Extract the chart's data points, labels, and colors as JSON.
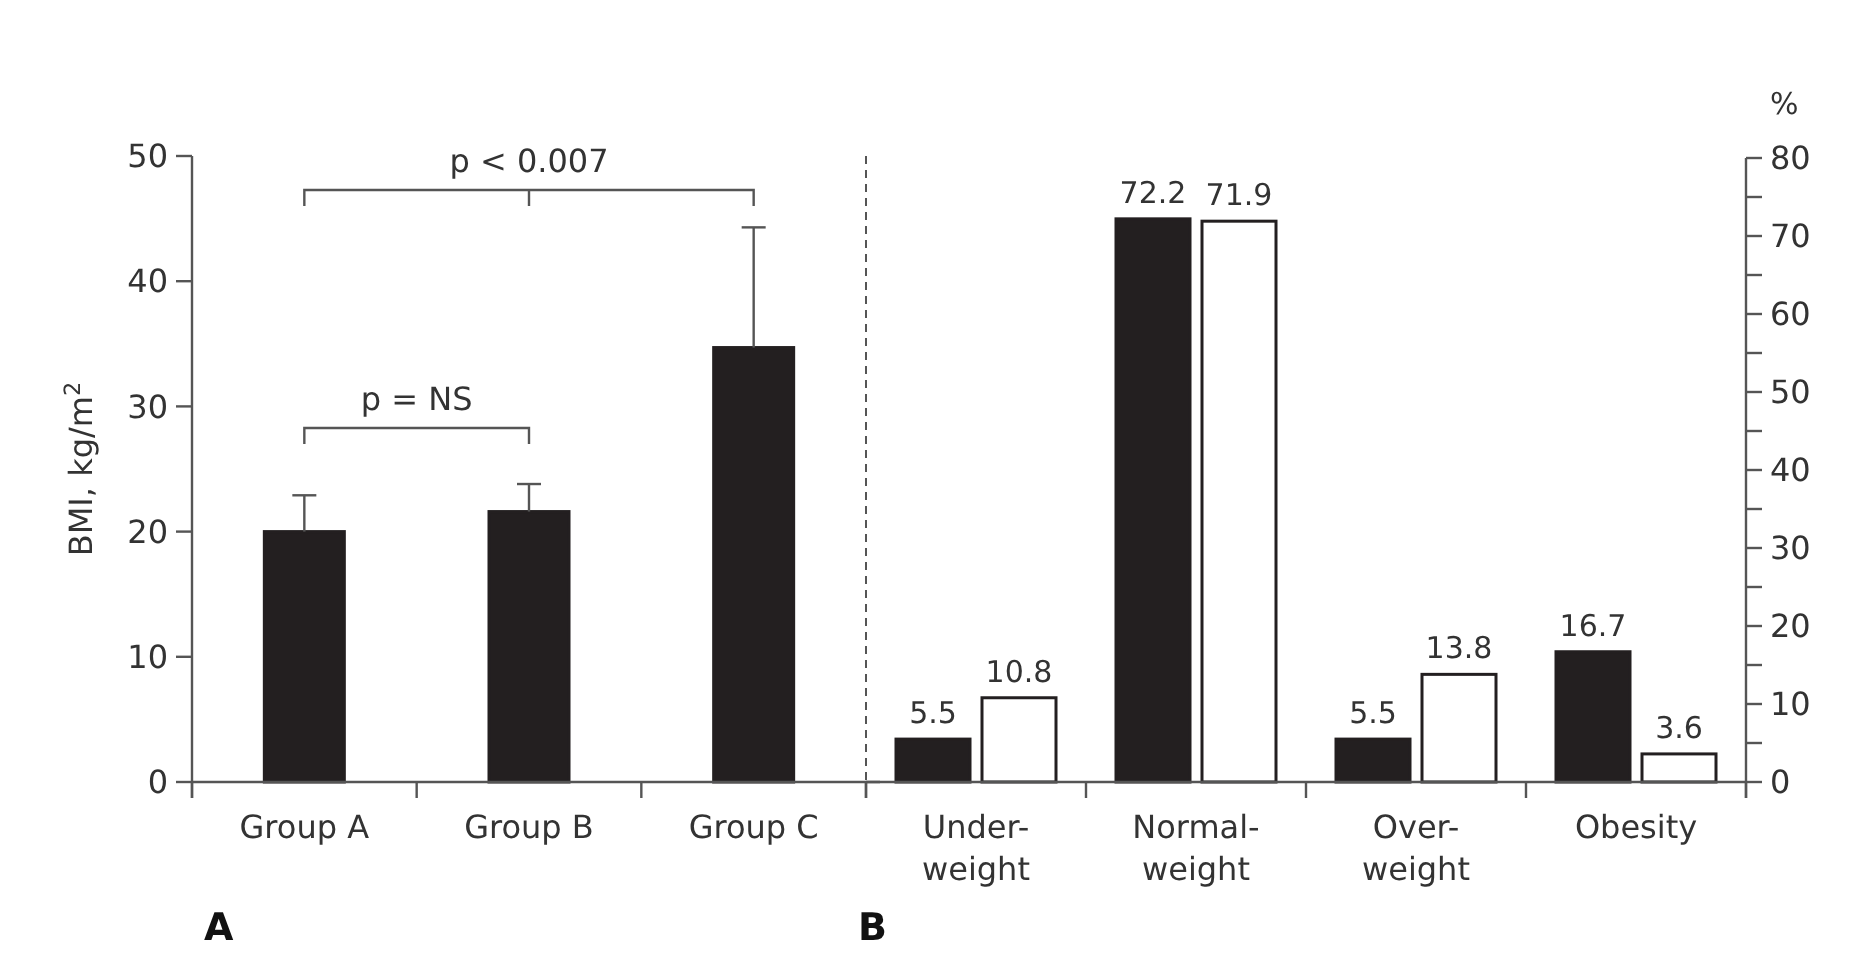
{
  "chart_data": [
    {
      "type": "bar",
      "ylabel": "BMI, kg/m$^{2}$",
      "categories": [
        "Group A",
        "Group B",
        "Group C"
      ],
      "values": [
        20,
        21.6,
        34.7
      ],
      "errors": [
        2.9,
        2.2,
        9.6
      ],
      "color": "#231f20",
      "ylim": [
        0,
        50
      ],
      "yticks": [
        0,
        10,
        20,
        30,
        40,
        50
      ],
      "annotations": [
        "p < 0.007",
        "p = NS",
        "A"
      ],
      "grid": false
    },
    {
      "type": "bar",
      "ylabel": "%",
      "categories": [
        "Under-\nweight",
        "Normal-\nweight",
        "Over-\nweight",
        "Obesity"
      ],
      "series": [
        {
          "color": "#231f20",
          "values": [
            5.5,
            72.2,
            5.5,
            16.7
          ]
        },
        {
          "color": "#ffffff",
          "values": [
            10.8,
            71.9,
            13.8,
            3.6
          ]
        }
      ],
      "ylim": [
        0,
        80
      ],
      "yticks": [
        0,
        {
          "value": 5,
          "label": null
        },
        10,
        {
          "value": 15,
          "label": null
        },
        20,
        {
          "value": 25,
          "label": null
        },
        30,
        {
          "value": 35,
          "label": null
        },
        40,
        {
          "value": 45,
          "label": null
        },
        50,
        {
          "value": 55,
          "label": null
        },
        60,
        {
          "value": 65,
          "label": null
        },
        70,
        {
          "value": 75,
          "label": null
        },
        80
      ],
      "data_labels": true,
      "annotations": [
        "B"
      ],
      "grid": false
    }
  ]
}
